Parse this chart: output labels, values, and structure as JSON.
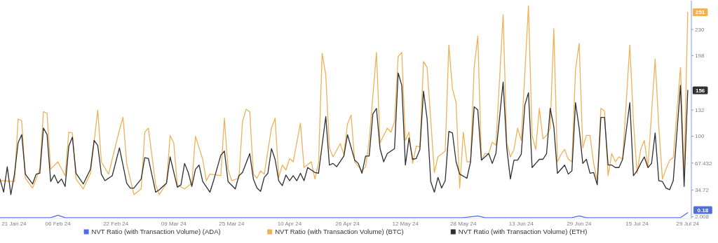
{
  "chart_data": {
    "type": "line",
    "xlim": [
      "2024-01-21",
      "2024-07-30"
    ],
    "xticks": [
      {
        "value": "2024-01-21",
        "label": "21 Jan 24"
      },
      {
        "value": "2024-02-06",
        "label": "06 Feb 24"
      },
      {
        "value": "2024-02-22",
        "label": "22 Feb 24"
      },
      {
        "value": "2024-03-09",
        "label": "09 Mar 24"
      },
      {
        "value": "2024-03-25",
        "label": "25 Mar 24"
      },
      {
        "value": "2024-04-10",
        "label": "10 Apr 24"
      },
      {
        "value": "2024-04-26",
        "label": "26 Apr 24"
      },
      {
        "value": "2024-05-12",
        "label": "12 May 24"
      },
      {
        "value": "2024-05-28",
        "label": "28 May 24"
      },
      {
        "value": "2024-06-13",
        "label": "13 Jun 24"
      },
      {
        "value": "2024-06-29",
        "label": "29 Jun 24"
      },
      {
        "value": "2024-07-15",
        "label": "15 Jul 24"
      },
      {
        "value": "2024-07-29",
        "label": "29 Jul 24"
      }
    ],
    "ylim": [
      0,
      265
    ],
    "yticks": [
      2.008,
      34.72,
      67.432,
      {
        "value": 100.144,
        "label": "100"
      },
      132,
      {
        "value": 198.28,
        "label": "198"
      },
      230
    ],
    "legend": "bottom",
    "line_style": "solid",
    "marker": "none",
    "annotations": [
      {
        "text": "251",
        "x": "2024-07-29",
        "y": 251
      },
      {
        "text": "156",
        "x": "2024-07-29",
        "y": 156
      },
      "0.18"
    ],
    "series": [
      {
        "name": "NVT Ratio (with Transaction Volume) (ADA)",
        "color": "#4f6fe0",
        "x": [
          "2024-01-21",
          "2024-02-04",
          "2024-02-06",
          "2024-02-08",
          "2024-05-28",
          "2024-06-01",
          "2024-06-03",
          "2024-06-27",
          "2024-06-29",
          "2024-07-01",
          "2024-07-27",
          "2024-07-29"
        ],
        "values": [
          1,
          1,
          4,
          1,
          1,
          3,
          1,
          1,
          3,
          1,
          1,
          7
        ]
      },
      {
        "name": "NVT Ratio (with Transaction Volume) (BTC)",
        "color": "#f0b257",
        "x": [
          "2024-01-21",
          "2024-01-25",
          "2024-01-26",
          "2024-01-27",
          "2024-01-28",
          "2024-01-30",
          "2024-02-01",
          "2024-02-02",
          "2024-02-03",
          "2024-02-04",
          "2024-02-06",
          "2024-02-08",
          "2024-02-09",
          "2024-02-10",
          "2024-02-11",
          "2024-02-13",
          "2024-02-15",
          "2024-02-17",
          "2024-02-18",
          "2024-02-20",
          "2024-02-23",
          "2024-02-24",
          "2024-02-25",
          "2024-02-27",
          "2024-02-29",
          "2024-03-01",
          "2024-03-02",
          "2024-03-04",
          "2024-03-05",
          "2024-03-07",
          "2024-03-08",
          "2024-03-09",
          "2024-03-10",
          "2024-03-12",
          "2024-03-14",
          "2024-03-15",
          "2024-03-17",
          "2024-03-18",
          "2024-03-19",
          "2024-03-22",
          "2024-03-23",
          "2024-03-24",
          "2024-03-25",
          "2024-03-27",
          "2024-03-28",
          "2024-03-29",
          "2024-03-30",
          "2024-03-31",
          "2024-04-01",
          "2024-04-02",
          "2024-04-03",
          "2024-04-05",
          "2024-04-06",
          "2024-04-07",
          "2024-04-08",
          "2024-04-09",
          "2024-04-10",
          "2024-04-11",
          "2024-04-13",
          "2024-04-14",
          "2024-04-16",
          "2024-04-17",
          "2024-04-18",
          "2024-04-19",
          "2024-04-20",
          "2024-04-21",
          "2024-04-22",
          "2024-04-24",
          "2024-04-25",
          "2024-04-26",
          "2024-04-27",
          "2024-04-28",
          "2024-04-30",
          "2024-05-01",
          "2024-05-02",
          "2024-05-04",
          "2024-05-05",
          "2024-05-07",
          "2024-05-08",
          "2024-05-09",
          "2024-05-10",
          "2024-05-11",
          "2024-05-12",
          "2024-05-13",
          "2024-05-14",
          "2024-05-15",
          "2024-05-16",
          "2024-05-17",
          "2024-05-18",
          "2024-05-20",
          "2024-05-21",
          "2024-05-23",
          "2024-05-24",
          "2024-05-25",
          "2024-05-26",
          "2024-05-27",
          "2024-05-28",
          "2024-05-29",
          "2024-05-30",
          "2024-05-31",
          "2024-06-01",
          "2024-06-02",
          "2024-06-03",
          "2024-06-04",
          "2024-06-05",
          "2024-06-06",
          "2024-06-08",
          "2024-06-09",
          "2024-06-10",
          "2024-06-11",
          "2024-06-12",
          "2024-06-13",
          "2024-06-15",
          "2024-06-16",
          "2024-06-17",
          "2024-06-18",
          "2024-06-19",
          "2024-06-20",
          "2024-06-21",
          "2024-06-22",
          "2024-06-23",
          "2024-06-24",
          "2024-06-25",
          "2024-06-26",
          "2024-06-27",
          "2024-06-28",
          "2024-06-29",
          "2024-06-30",
          "2024-07-01",
          "2024-07-02",
          "2024-07-03",
          "2024-07-04",
          "2024-07-05",
          "2024-07-06",
          "2024-07-07",
          "2024-07-08",
          "2024-07-09",
          "2024-07-10",
          "2024-07-11",
          "2024-07-13",
          "2024-07-14",
          "2024-07-15",
          "2024-07-16",
          "2024-07-17",
          "2024-07-18",
          "2024-07-20",
          "2024-07-21",
          "2024-07-22",
          "2024-07-23",
          "2024-07-24",
          "2024-07-25",
          "2024-07-27",
          "2024-07-28",
          "2024-07-29"
        ],
        "values": [
          46,
          45,
          121,
          119,
          49,
          37,
          60,
          130,
          128,
          60,
          69,
          52,
          105,
          104,
          48,
          36,
          55,
          132,
          69,
          54,
          108,
          123,
          67,
          29,
          36,
          105,
          110,
          41,
          29,
          43,
          101,
          92,
          41,
          36,
          43,
          100,
          72,
          46,
          54,
          52,
          122,
          60,
          46,
          49,
          118,
          133,
          130,
          54,
          49,
          58,
          54,
          110,
          122,
          50,
          65,
          59,
          73,
          69,
          116,
          62,
          69,
          48,
          67,
          201,
          175,
          86,
          75,
          91,
          78,
          115,
          126,
          69,
          58,
          63,
          95,
          202,
          92,
          110,
          105,
          118,
          197,
          202,
          95,
          105,
          67,
          88,
          87,
          191,
          184,
          56,
          75,
          82,
          211,
          158,
          141,
          37,
          105,
          69,
          69,
          184,
          222,
          72,
          79,
          79,
          93,
          89,
          248,
          92,
          75,
          84,
          110,
          95,
          259,
          101,
          84,
          134,
          97,
          101,
          110,
          231,
          69,
          78,
          84,
          72,
          69,
          181,
          213,
          86,
          101,
          101,
          67,
          46,
          134,
          131,
          52,
          79,
          69,
          75,
          72,
          211,
          118,
          55,
          84,
          95,
          62,
          194,
          112,
          48,
          60,
          71,
          74,
          184,
          52,
          251
        ]
      },
      {
        "name": "NVT Ratio (with Transaction Volume) (ETH)",
        "color": "#2e2e33",
        "x": [
          "2024-01-21",
          "2024-01-22",
          "2024-01-23",
          "2024-01-24",
          "2024-01-25",
          "2024-01-26",
          "2024-01-27",
          "2024-01-28",
          "2024-01-30",
          "2024-01-31",
          "2024-02-01",
          "2024-02-02",
          "2024-02-03",
          "2024-02-04",
          "2024-02-05",
          "2024-02-06",
          "2024-02-07",
          "2024-02-08",
          "2024-02-09",
          "2024-02-10",
          "2024-02-11",
          "2024-02-13",
          "2024-02-15",
          "2024-02-16",
          "2024-02-17",
          "2024-02-18",
          "2024-02-19",
          "2024-02-21",
          "2024-02-23",
          "2024-02-25",
          "2024-02-26",
          "2024-02-27",
          "2024-02-29",
          "2024-03-01",
          "2024-03-02",
          "2024-03-04",
          "2024-03-05",
          "2024-03-07",
          "2024-03-08",
          "2024-03-10",
          "2024-03-11",
          "2024-03-12",
          "2024-03-13",
          "2024-03-14",
          "2024-03-15",
          "2024-03-16",
          "2024-03-17",
          "2024-03-19",
          "2024-03-20",
          "2024-03-22",
          "2024-03-23",
          "2024-03-24",
          "2024-03-26",
          "2024-03-27",
          "2024-03-28",
          "2024-03-30",
          "2024-03-31",
          "2024-04-01",
          "2024-04-02",
          "2024-04-03",
          "2024-04-04",
          "2024-04-05",
          "2024-04-06",
          "2024-04-07",
          "2024-04-08",
          "2024-04-09",
          "2024-04-10",
          "2024-04-11",
          "2024-04-12",
          "2024-04-13",
          "2024-04-14",
          "2024-04-15",
          "2024-04-17",
          "2024-04-18",
          "2024-04-20",
          "2024-04-21",
          "2024-04-22",
          "2024-04-23",
          "2024-04-25",
          "2024-04-26",
          "2024-04-28",
          "2024-04-29",
          "2024-04-30",
          "2024-05-01",
          "2024-05-02",
          "2024-05-03",
          "2024-05-04",
          "2024-05-05",
          "2024-05-06",
          "2024-05-07",
          "2024-05-09",
          "2024-05-10",
          "2024-05-11",
          "2024-05-12",
          "2024-05-13",
          "2024-05-14",
          "2024-05-15",
          "2024-05-16",
          "2024-05-17",
          "2024-05-18",
          "2024-05-19",
          "2024-05-20",
          "2024-05-21",
          "2024-05-22",
          "2024-05-23",
          "2024-05-24",
          "2024-05-25",
          "2024-05-26",
          "2024-05-27",
          "2024-05-29",
          "2024-05-30",
          "2024-05-31",
          "2024-06-01",
          "2024-06-02",
          "2024-06-04",
          "2024-06-05",
          "2024-06-06",
          "2024-06-08",
          "2024-06-09",
          "2024-06-10",
          "2024-06-11",
          "2024-06-12",
          "2024-06-13",
          "2024-06-14",
          "2024-06-15",
          "2024-06-16",
          "2024-06-17",
          "2024-06-18",
          "2024-06-19",
          "2024-06-20",
          "2024-06-21",
          "2024-06-22",
          "2024-06-23",
          "2024-06-25",
          "2024-06-26",
          "2024-06-27",
          "2024-06-28",
          "2024-06-29",
          "2024-06-30",
          "2024-07-01",
          "2024-07-02",
          "2024-07-03",
          "2024-07-04",
          "2024-07-05",
          "2024-07-06",
          "2024-07-07",
          "2024-07-08",
          "2024-07-09",
          "2024-07-10",
          "2024-07-11",
          "2024-07-13",
          "2024-07-14",
          "2024-07-15",
          "2024-07-16",
          "2024-07-17",
          "2024-07-18",
          "2024-07-19",
          "2024-07-20",
          "2024-07-21",
          "2024-07-22",
          "2024-07-23",
          "2024-07-24",
          "2024-07-25",
          "2024-07-27",
          "2024-07-28",
          "2024-07-29"
        ],
        "values": [
          48,
          32,
          63,
          29,
          54,
          92,
          102,
          54,
          42,
          54,
          55,
          110,
          102,
          45,
          53,
          43,
          48,
          39,
          88,
          99,
          55,
          42,
          60,
          95,
          89,
          54,
          46,
          52,
          86,
          43,
          37,
          37,
          48,
          74,
          73,
          32,
          35,
          43,
          75,
          38,
          41,
          67,
          56,
          39,
          60,
          65,
          45,
          32,
          46,
          77,
          82,
          45,
          36,
          52,
          56,
          79,
          48,
          37,
          33,
          50,
          55,
          85,
          72,
          46,
          40,
          53,
          46,
          52,
          46,
          55,
          46,
          62,
          56,
          55,
          124,
          65,
          67,
          63,
          76,
          102,
          71,
          67,
          55,
          76,
          76,
          127,
          134,
          85,
          69,
          79,
          85,
          177,
          162,
          65,
          98,
          72,
          73,
          84,
          155,
          121,
          45,
          32,
          50,
          37,
          46,
          106,
          104,
          69,
          54,
          49,
          69,
          136,
          132,
          71,
          79,
          67,
          79,
          166,
          86,
          48,
          71,
          71,
          78,
          138,
          153,
          62,
          67,
          72,
          72,
          79,
          134,
          112,
          55,
          65,
          54,
          58,
          141,
          110,
          67,
          72,
          55,
          56,
          41,
          123,
          123,
          65,
          65,
          62,
          62,
          72,
          141,
          52,
          58,
          67,
          75,
          62,
          67,
          104,
          46,
          45,
          37,
          35,
          46,
          162,
          39,
          156
        ]
      }
    ]
  }
}
